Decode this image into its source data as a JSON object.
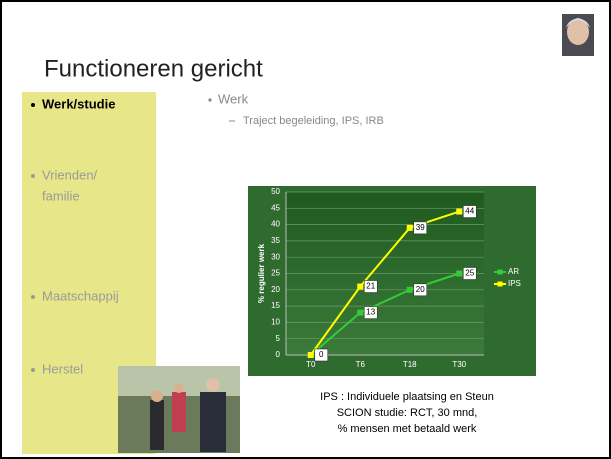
{
  "slide": {
    "title": "Functioneren gericht",
    "sidebar": [
      "Werk/studie",
      "Vrienden/",
      "familie",
      "Maatschappij",
      "Herstel"
    ],
    "bullet": "Werk",
    "sub_bullet": "Traject begeleiding, IPS, IRB",
    "caption": [
      "IPS : Individuele plaatsing en Steun",
      "SCION studie: RCT, 30 mnd,",
      "% mensen met betaald werk"
    ]
  },
  "chart_data": {
    "type": "line",
    "y_label": "% regulier werk",
    "categories": [
      "T0",
      "T6",
      "T18",
      "T30"
    ],
    "series": [
      {
        "name": "AR",
        "color": "#33cc33",
        "values": [
          0,
          13,
          20,
          25
        ]
      },
      {
        "name": "IPS",
        "color": "#ffff00",
        "values": [
          0,
          21,
          39,
          44
        ]
      }
    ],
    "ylim": [
      0,
      50
    ],
    "yticks": [
      0,
      5,
      10,
      15,
      20,
      25,
      30,
      35,
      40,
      45,
      50
    ],
    "grid": true,
    "legend": "right"
  }
}
